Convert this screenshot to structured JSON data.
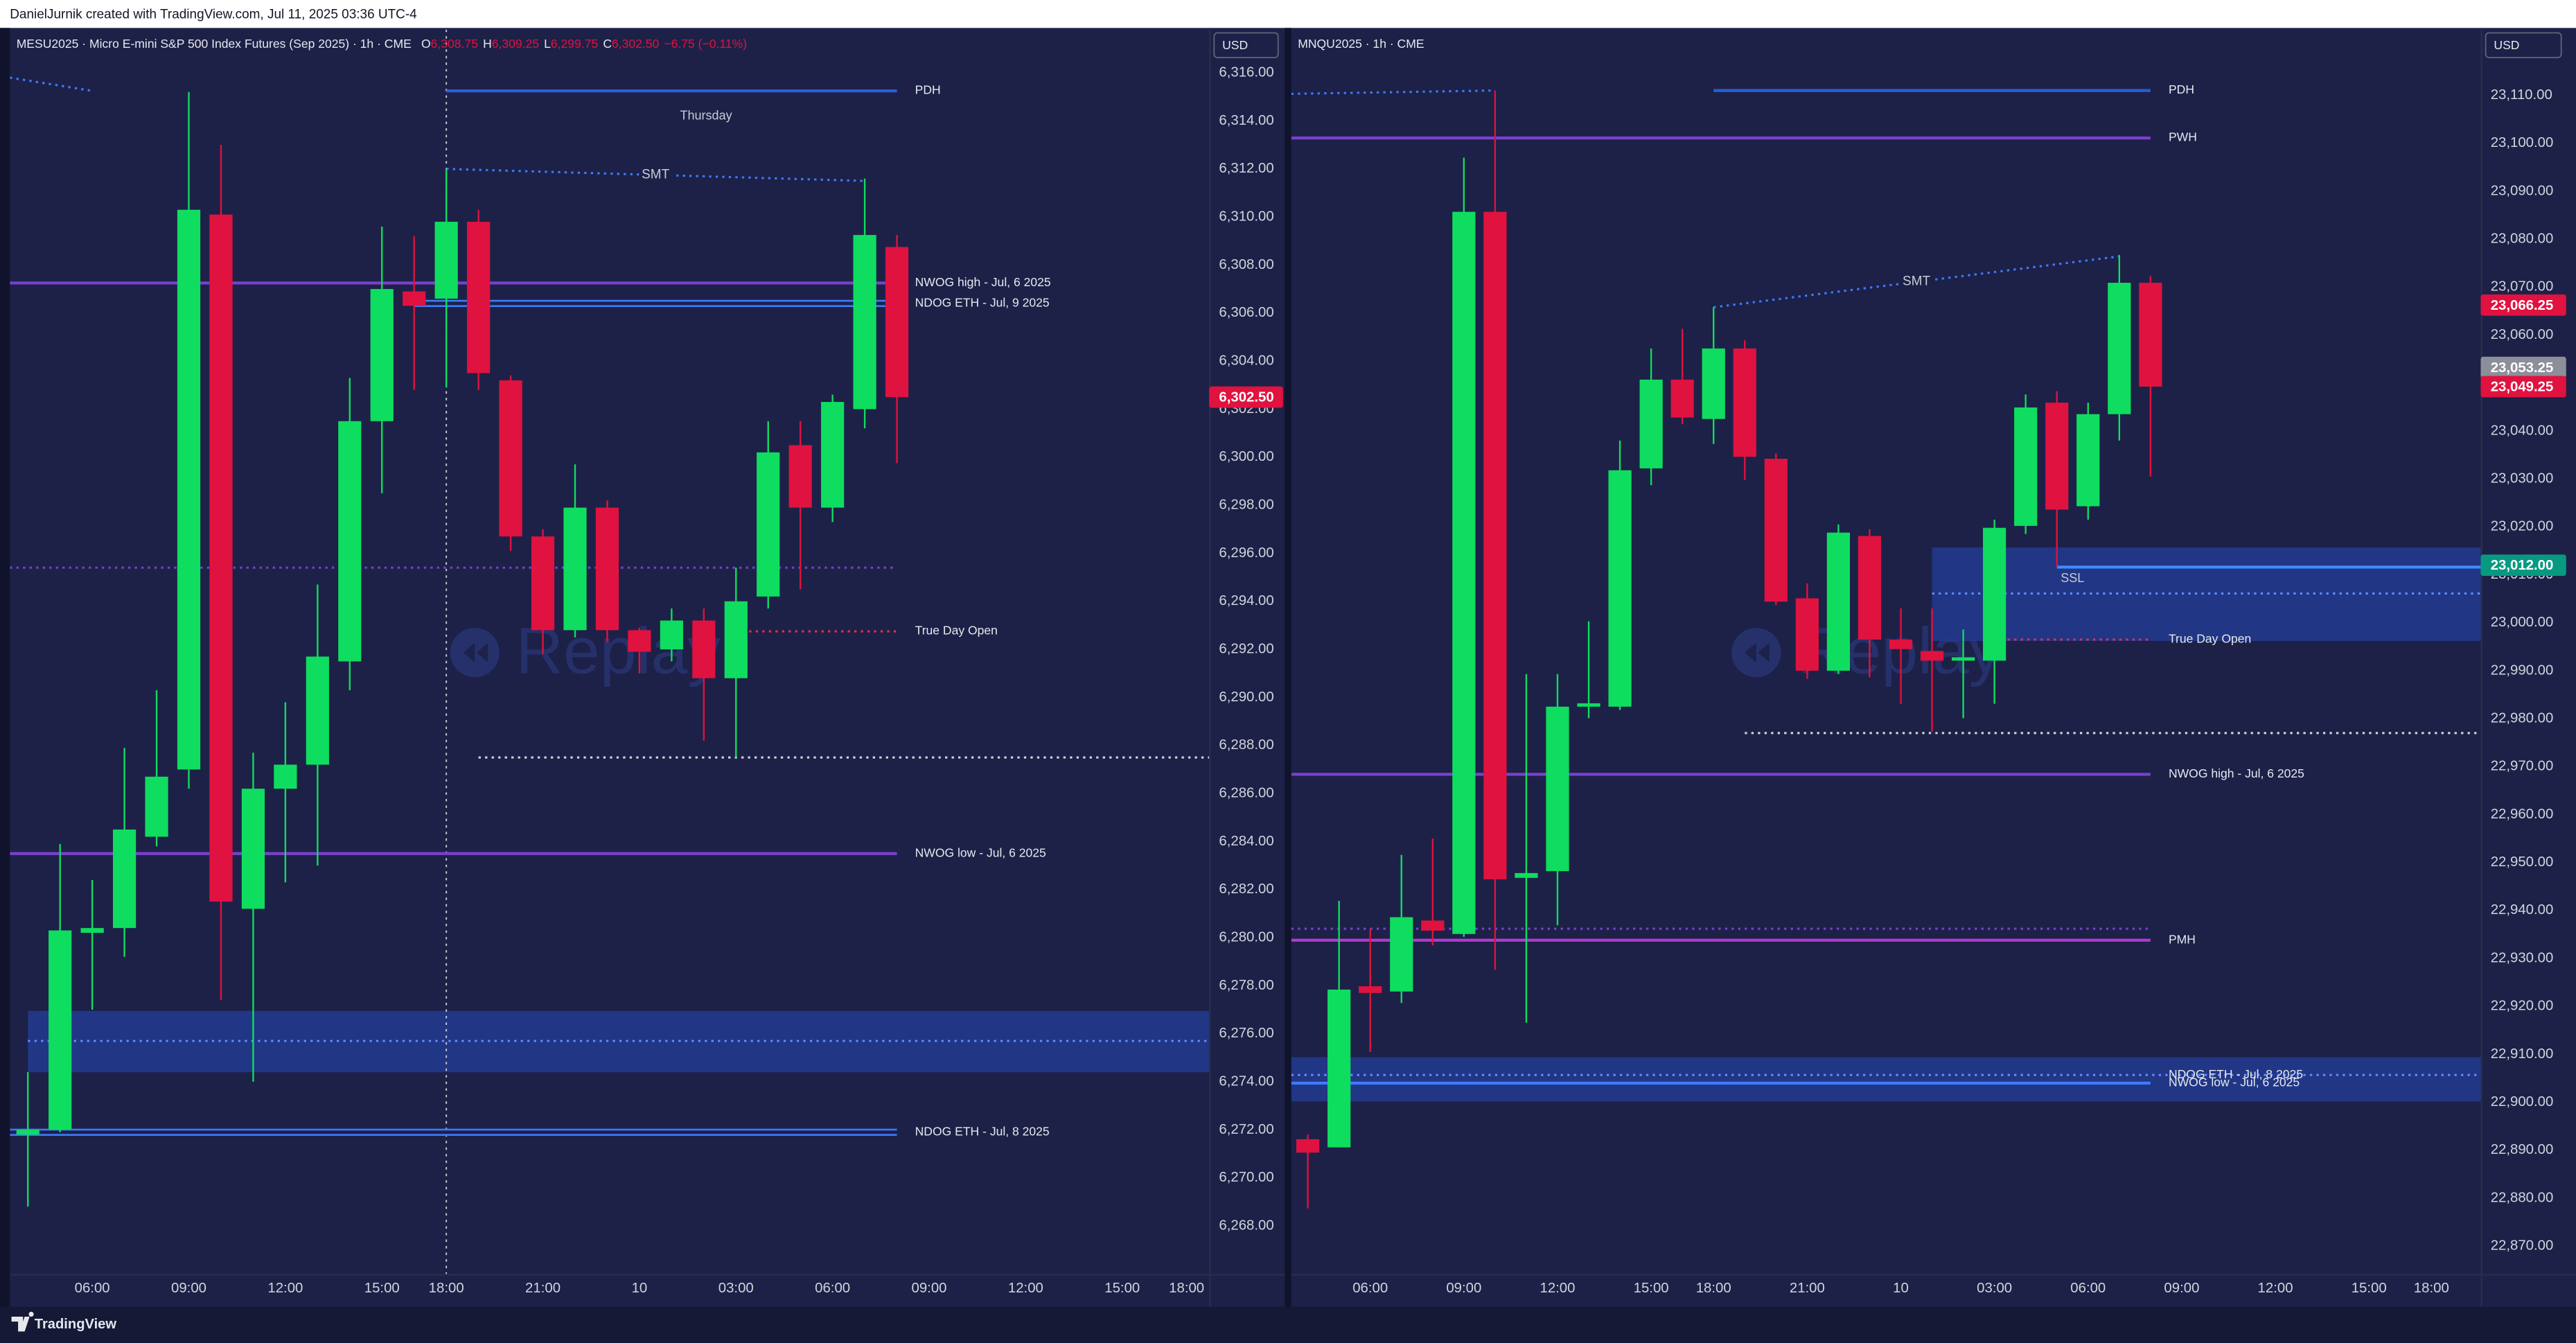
{
  "header": {
    "text": "DanielJurnik created with TradingView.com, Jul 11, 2025 03:36 UTC-4"
  },
  "footer": {
    "text": "TradingView"
  },
  "chart_data": [
    {
      "type": "candlestick",
      "legend": "MESU2025 · Micro E-mini S&P 500 Index Futures (Sep 2025) · 1h · CME",
      "ohlc": [
        {
          "key": "O",
          "text": "6,308.75"
        },
        {
          "key": "H",
          "text": "6,309.25"
        },
        {
          "key": "L",
          "text": "6,299.75"
        },
        {
          "key": "C",
          "text": "6,302.50"
        }
      ],
      "change": "−6.75 (−0.11%)",
      "currency": "USD",
      "watermark": "Replay",
      "up_color": "#0fdd5f",
      "down_color": "#e0123f",
      "x": [
        0,
        1,
        2,
        3,
        4,
        5,
        6,
        7,
        8,
        9,
        10,
        11,
        12,
        13,
        14,
        15,
        16,
        17,
        18,
        19,
        20,
        21,
        22,
        23,
        24,
        25,
        26,
        27
      ],
      "open": [
        6271.8,
        6272.0,
        6280.2,
        6280.4,
        6284.2,
        6287.0,
        6310.1,
        6281.2,
        6286.2,
        6287.2,
        6291.5,
        6301.5,
        6306.9,
        6306.6,
        6309.8,
        6303.2,
        6296.7,
        6292.8,
        6297.9,
        6292.8,
        6292.0,
        6293.2,
        6290.8,
        6294.2,
        6300.5,
        6297.9,
        6302.0,
        6308.75
      ],
      "high": [
        6274.4,
        6283.9,
        6282.4,
        6287.9,
        6290.3,
        6315.2,
        6313.0,
        6287.7,
        6289.8,
        6294.7,
        6303.3,
        6309.6,
        6309.2,
        6312.0,
        6310.3,
        6303.4,
        6297.0,
        6299.7,
        6298.2,
        6292.9,
        6293.7,
        6293.7,
        6295.4,
        6301.5,
        6301.5,
        6302.6,
        6311.6,
        6309.25
      ],
      "low": [
        6268.8,
        6271.9,
        6277.0,
        6279.2,
        6283.8,
        6286.2,
        6277.4,
        6274.0,
        6282.3,
        6283.0,
        6290.3,
        6298.5,
        6302.8,
        6302.9,
        6302.8,
        6296.1,
        6291.8,
        6292.5,
        6292.3,
        6291.0,
        6291.5,
        6288.2,
        6287.5,
        6293.7,
        6294.5,
        6297.3,
        6301.2,
        6299.75
      ],
      "close": [
        6272.0,
        6280.3,
        6280.4,
        6284.5,
        6286.7,
        6310.3,
        6281.5,
        6286.2,
        6287.2,
        6291.7,
        6301.5,
        6307.0,
        6306.3,
        6309.8,
        6303.5,
        6296.7,
        6292.8,
        6297.9,
        6292.8,
        6291.9,
        6293.2,
        6290.8,
        6294.0,
        6300.2,
        6297.9,
        6302.3,
        6309.25,
        6302.5
      ],
      "xlim": [
        -0.56,
        36.7
      ],
      "xticks": [
        {
          "value": 2,
          "label": "06:00"
        },
        {
          "value": 5,
          "label": "09:00"
        },
        {
          "value": 8,
          "label": "12:00"
        },
        {
          "value": 11,
          "label": "15:00"
        },
        {
          "value": 13,
          "label": "18:00"
        },
        {
          "value": 16,
          "label": "21:00"
        },
        {
          "value": 19,
          "label": "10"
        },
        {
          "value": 22,
          "label": "03:00"
        },
        {
          "value": 25,
          "label": "06:00"
        },
        {
          "value": 28,
          "label": "09:00"
        },
        {
          "value": 31,
          "label": "12:00"
        },
        {
          "value": 34,
          "label": "15:00"
        },
        {
          "value": 36,
          "label": "18:00"
        }
      ],
      "ylim": [
        6266.0,
        6317.8
      ],
      "yticks": [
        {
          "value": 6268,
          "label": "6,268.00"
        },
        {
          "value": 6270,
          "label": "6,270.00"
        },
        {
          "value": 6272,
          "label": "6,272.00"
        },
        {
          "value": 6274,
          "label": "6,274.00"
        },
        {
          "value": 6276,
          "label": "6,276.00"
        },
        {
          "value": 6278,
          "label": "6,278.00"
        },
        {
          "value": 6280,
          "label": "6,280.00"
        },
        {
          "value": 6282,
          "label": "6,282.00"
        },
        {
          "value": 6284,
          "label": "6,284.00"
        },
        {
          "value": 6286,
          "label": "6,286.00"
        },
        {
          "value": 6288,
          "label": "6,288.00"
        },
        {
          "value": 6290,
          "label": "6,290.00"
        },
        {
          "value": 6292,
          "label": "6,292.00"
        },
        {
          "value": 6294,
          "label": "6,294.00"
        },
        {
          "value": 6296,
          "label": "6,296.00"
        },
        {
          "value": 6298,
          "label": "6,298.00"
        },
        {
          "value": 6300,
          "label": "6,300.00"
        },
        {
          "value": 6302,
          "label": "6,302.00"
        },
        {
          "value": 6304,
          "label": "6,304.00"
        },
        {
          "value": 6306,
          "label": "6,306.00"
        },
        {
          "value": 6308,
          "label": "6,308.00"
        },
        {
          "value": 6310,
          "label": "6,310.00"
        },
        {
          "value": 6312,
          "label": "6,312.00"
        },
        {
          "value": 6314,
          "label": "6,314.00"
        },
        {
          "value": 6316,
          "label": "6,316.00"
        }
      ],
      "session_x": 13,
      "zones": [
        {
          "y": [
            6276.95,
            6274.4
          ],
          "x": [
            0,
            36.7
          ],
          "color": "#22398f"
        }
      ],
      "levels": [
        {
          "value": 6315.25,
          "x": [
            13,
            27
          ],
          "color": "#2a5ed8",
          "style": "solid",
          "label": "PDH"
        },
        {
          "value": 6307.25,
          "x": [
            -0.56,
            27
          ],
          "color": "#7b3fd0",
          "style": "solid",
          "label": "NWOG high - Jul, 6 2025"
        },
        {
          "value": 6306.4,
          "x": [
            12,
            27
          ],
          "color": "#3d7bff",
          "style": "double",
          "label": "NDOG ETH - Jul, 9 2025"
        },
        {
          "value": 6295.4,
          "x": [
            -0.56,
            27
          ],
          "color": "#7b3fd0",
          "style": "dotted"
        },
        {
          "value": 6292.75,
          "x": [
            22,
            27
          ],
          "color": "#e0304f",
          "style": "dotted",
          "label": "True Day Open"
        },
        {
          "value": 6287.5,
          "x": [
            14,
            36.7
          ],
          "color": "#d1d4dc",
          "style": "dotted"
        },
        {
          "value": 6283.5,
          "x": [
            -0.56,
            27
          ],
          "color": "#7b3fd0",
          "style": "solid",
          "label": "NWOG low - Jul, 6 2025"
        },
        {
          "value": 6275.7,
          "x": [
            0,
            36.7
          ],
          "color": "#5f8dff",
          "style": "dotted"
        },
        {
          "value": 6271.9,
          "x": [
            -0.56,
            27
          ],
          "color": "#3d7bff",
          "style": "double",
          "label": "NDOG ETH - Jul, 8 2025"
        }
      ],
      "segments": [
        {
          "x": [
            13,
            26
          ],
          "y": [
            6312.0,
            6311.5
          ],
          "color": "#3d7bff",
          "label": "SMT"
        },
        {
          "x": [
            -0.56,
            2
          ],
          "y": [
            6315.8,
            6315.25
          ],
          "color": "#3d7bff"
        }
      ],
      "annotations": [
        {
          "text": "Thursday",
          "x": 21.07,
          "y": 6314.2
        }
      ],
      "price_tags": [
        {
          "value": 6302.5,
          "label": "6,302.50",
          "color": "#e0123f"
        }
      ]
    },
    {
      "type": "candlestick",
      "legend": "MNQU2025 · 1h · CME",
      "currency": "USD",
      "watermark": "Replay",
      "up_color": "#0fdd5f",
      "down_color": "#e0123f",
      "x": [
        0,
        1,
        2,
        3,
        4,
        5,
        6,
        7,
        8,
        9,
        10,
        11,
        12,
        13,
        14,
        15,
        16,
        17,
        18,
        19,
        20,
        21,
        22,
        23,
        24,
        25,
        26,
        27
      ],
      "open": [
        22892.3,
        22890.6,
        22924.2,
        22923.1,
        22937.9,
        22935.1,
        23085.7,
        22946.8,
        22948.2,
        22982.5,
        22982.5,
        23032.2,
        23050.7,
        23042.5,
        23057.2,
        23034.2,
        23005.1,
        22990.0,
        23018.1,
        22996.5,
        22994.1,
        22992.1,
        22992.1,
        23020.2,
        23045.9,
        23024.3,
        23043.5,
        23070.9
      ],
      "high": [
        22893.3,
        22942.0,
        22936.2,
        22951.6,
        22955.0,
        23097.0,
        23111.0,
        22989.3,
        22989.3,
        23000.3,
        23038.0,
        23057.2,
        23061.3,
        23065.8,
        23058.9,
        23035.3,
        23008.2,
        23020.5,
        23019.5,
        23003.0,
        23003.0,
        22998.6,
        23021.5,
        23047.6,
        23048.3,
        23045.9,
        23076.7,
        23072.3
      ],
      "low": [
        22877.9,
        22890.6,
        22910.5,
        22920.7,
        22932.7,
        22934.5,
        22927.6,
        22916.6,
        22936.9,
        22980.1,
        22981.8,
        23028.7,
        23041.4,
        23037.3,
        23029.8,
        23003.7,
        22988.3,
        22989.3,
        22988.6,
        22983.1,
        22977.3,
        22980.1,
        22983.1,
        23018.5,
        23011.6,
        23021.5,
        23038.0,
        23030.5
      ],
      "close": [
        22889.5,
        22923.5,
        22922.8,
        22938.6,
        22935.8,
        23085.7,
        22946.5,
        22947.8,
        22982.5,
        22983.2,
        23031.8,
        23050.7,
        23042.8,
        23057.2,
        23034.6,
        23004.4,
        22990.0,
        23018.8,
        22996.5,
        22994.5,
        22992.1,
        22992.8,
        23019.8,
        23044.9,
        23023.6,
        23043.5,
        23070.9,
        23049.25
      ],
      "xlim": [
        -0.53,
        37.58
      ],
      "xticks": [
        {
          "value": 2,
          "label": "06:00"
        },
        {
          "value": 5,
          "label": "09:00"
        },
        {
          "value": 8,
          "label": "12:00"
        },
        {
          "value": 11,
          "label": "15:00"
        },
        {
          "value": 13,
          "label": "18:00"
        },
        {
          "value": 16,
          "label": "21:00"
        },
        {
          "value": 19,
          "label": "10"
        },
        {
          "value": 22,
          "label": "03:00"
        },
        {
          "value": 25,
          "label": "06:00"
        },
        {
          "value": 28,
          "label": "09:00"
        },
        {
          "value": 31,
          "label": "12:00"
        },
        {
          "value": 34,
          "label": "15:00"
        },
        {
          "value": 36,
          "label": "18:00"
        }
      ],
      "ylim": [
        22864.2,
        23123.7
      ],
      "yticks": [
        {
          "value": 22870,
          "label": "22,870.00"
        },
        {
          "value": 22880,
          "label": "22,880.00"
        },
        {
          "value": 22890,
          "label": "22,890.00"
        },
        {
          "value": 22900,
          "label": "22,900.00"
        },
        {
          "value": 22910,
          "label": "22,910.00"
        },
        {
          "value": 22920,
          "label": "22,920.00"
        },
        {
          "value": 22930,
          "label": "22,930.00"
        },
        {
          "value": 22940,
          "label": "22,940.00"
        },
        {
          "value": 22950,
          "label": "22,950.00"
        },
        {
          "value": 22960,
          "label": "22,960.00"
        },
        {
          "value": 22970,
          "label": "22,970.00"
        },
        {
          "value": 22980,
          "label": "22,980.00"
        },
        {
          "value": 22990,
          "label": "22,990.00"
        },
        {
          "value": 23000,
          "label": "23,000.00"
        },
        {
          "value": 23010,
          "label": "23,010.00"
        },
        {
          "value": 23020,
          "label": "23,020.00"
        },
        {
          "value": 23030,
          "label": "23,030.00"
        },
        {
          "value": 23040,
          "label": "23,040.00"
        },
        {
          "value": 23050,
          "label": "23,050.00"
        },
        {
          "value": 23060,
          "label": "23,060.00"
        },
        {
          "value": 23070,
          "label": "23,070.00"
        },
        {
          "value": 23080,
          "label": "23,080.00"
        },
        {
          "value": 23090,
          "label": "23,090.00"
        },
        {
          "value": 23100,
          "label": "23,100.00"
        },
        {
          "value": 23110,
          "label": "23,110.00"
        }
      ],
      "zones": [
        {
          "y": [
            23015.7,
            22996.2
          ],
          "x": [
            20,
            37.58
          ],
          "color": "#22398f"
        },
        {
          "y": [
            22909.4,
            22900.2
          ],
          "x": [
            -0.53,
            37.58
          ],
          "color": "#22398f"
        }
      ],
      "levels": [
        {
          "value": 23111.0,
          "x": [
            13,
            27
          ],
          "color": "#2a5ed8",
          "style": "solid",
          "label": "PDH"
        },
        {
          "value": 23101.1,
          "x": [
            -0.53,
            27
          ],
          "color": "#7b3fd0",
          "style": "solid",
          "label": "PWH"
        },
        {
          "value": 23011.6,
          "x": [
            24,
            37.58
          ],
          "color": "#3d8bff",
          "style": "solid"
        },
        {
          "value": 23006.1,
          "x": [
            20,
            37.58
          ],
          "color": "#5f8dff",
          "style": "dotted"
        },
        {
          "value": 22996.5,
          "x": [
            22,
            27
          ],
          "color": "#e0304f",
          "style": "dotted",
          "label": "True Day Open"
        },
        {
          "value": 22977.0,
          "x": [
            14,
            37.58
          ],
          "color": "#d1d4dc",
          "style": "dotted"
        },
        {
          "value": 22968.4,
          "x": [
            -0.53,
            27
          ],
          "color": "#7b3fd0",
          "style": "solid",
          "label": "NWOG high - Jul, 6 2025"
        },
        {
          "value": 22936.2,
          "x": [
            -0.53,
            27
          ],
          "color": "#7b3fd0",
          "style": "dotted"
        },
        {
          "value": 22933.8,
          "x": [
            -0.53,
            27
          ],
          "color": "#b03ad0",
          "style": "solid",
          "label": "PMH"
        },
        {
          "value": 22905.7,
          "x": [
            -0.53,
            37.58
          ],
          "color": "#5f8dff",
          "style": "dotted",
          "label": "NDOG ETH - Jul, 8 2025"
        },
        {
          "value": 22904.0,
          "x": [
            -0.53,
            27
          ],
          "color": "#3d7bff",
          "style": "solid",
          "label": "NWOG low - Jul, 6 2025"
        }
      ],
      "segments": [
        {
          "x": [
            13,
            26
          ],
          "y": [
            23065.8,
            23076.4
          ],
          "color": "#3d7bff",
          "label": "SMT"
        },
        {
          "x": [
            -0.53,
            6
          ],
          "y": [
            23110.3,
            23111.0
          ],
          "color": "#3d7bff"
        }
      ],
      "annotations": [
        {
          "text": "SSL",
          "x": 24.5,
          "y": 23009.2
        }
      ],
      "price_tags": [
        {
          "value": 23066.25,
          "label": "23,066.25",
          "color": "#e0123f"
        },
        {
          "value": 23053.25,
          "label": "23,053.25",
          "color": "#8c8f9a"
        },
        {
          "value": 23049.25,
          "label": "23,049.25",
          "color": "#e0123f"
        },
        {
          "value": 23012.0,
          "label": "23,012.00",
          "color": "#089981"
        }
      ]
    }
  ]
}
